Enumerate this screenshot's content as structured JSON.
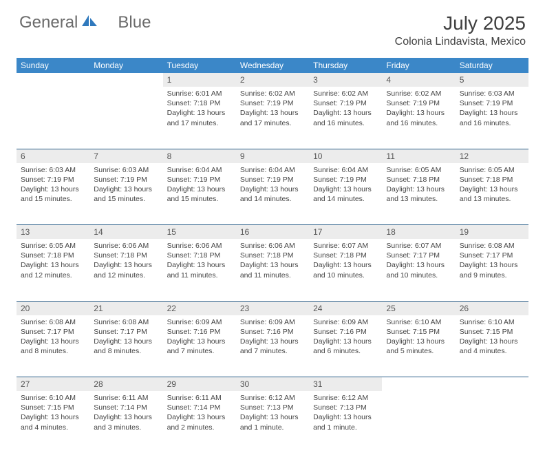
{
  "brand": {
    "name1": "General",
    "name2": "Blue"
  },
  "title": "July 2025",
  "location": "Colonia Lindavista, Mexico",
  "colors": {
    "header_bg": "#3b87c8",
    "header_text": "#ffffff",
    "daynum_bg": "#ececec",
    "daynum_text": "#555555",
    "cell_text": "#444444",
    "week_border": "#2b5f8a",
    "logo_text": "#6b6b6b",
    "logo_icon": "#2f79bd",
    "title_text": "#404040"
  },
  "day_headers": [
    "Sunday",
    "Monday",
    "Tuesday",
    "Wednesday",
    "Thursday",
    "Friday",
    "Saturday"
  ],
  "weeks": [
    [
      null,
      null,
      {
        "n": "1",
        "sunrise": "6:01 AM",
        "sunset": "7:18 PM",
        "daylight": "13 hours and 17 minutes."
      },
      {
        "n": "2",
        "sunrise": "6:02 AM",
        "sunset": "7:19 PM",
        "daylight": "13 hours and 17 minutes."
      },
      {
        "n": "3",
        "sunrise": "6:02 AM",
        "sunset": "7:19 PM",
        "daylight": "13 hours and 16 minutes."
      },
      {
        "n": "4",
        "sunrise": "6:02 AM",
        "sunset": "7:19 PM",
        "daylight": "13 hours and 16 minutes."
      },
      {
        "n": "5",
        "sunrise": "6:03 AM",
        "sunset": "7:19 PM",
        "daylight": "13 hours and 16 minutes."
      }
    ],
    [
      {
        "n": "6",
        "sunrise": "6:03 AM",
        "sunset": "7:19 PM",
        "daylight": "13 hours and 15 minutes."
      },
      {
        "n": "7",
        "sunrise": "6:03 AM",
        "sunset": "7:19 PM",
        "daylight": "13 hours and 15 minutes."
      },
      {
        "n": "8",
        "sunrise": "6:04 AM",
        "sunset": "7:19 PM",
        "daylight": "13 hours and 15 minutes."
      },
      {
        "n": "9",
        "sunrise": "6:04 AM",
        "sunset": "7:19 PM",
        "daylight": "13 hours and 14 minutes."
      },
      {
        "n": "10",
        "sunrise": "6:04 AM",
        "sunset": "7:19 PM",
        "daylight": "13 hours and 14 minutes."
      },
      {
        "n": "11",
        "sunrise": "6:05 AM",
        "sunset": "7:18 PM",
        "daylight": "13 hours and 13 minutes."
      },
      {
        "n": "12",
        "sunrise": "6:05 AM",
        "sunset": "7:18 PM",
        "daylight": "13 hours and 13 minutes."
      }
    ],
    [
      {
        "n": "13",
        "sunrise": "6:05 AM",
        "sunset": "7:18 PM",
        "daylight": "13 hours and 12 minutes."
      },
      {
        "n": "14",
        "sunrise": "6:06 AM",
        "sunset": "7:18 PM",
        "daylight": "13 hours and 12 minutes."
      },
      {
        "n": "15",
        "sunrise": "6:06 AM",
        "sunset": "7:18 PM",
        "daylight": "13 hours and 11 minutes."
      },
      {
        "n": "16",
        "sunrise": "6:06 AM",
        "sunset": "7:18 PM",
        "daylight": "13 hours and 11 minutes."
      },
      {
        "n": "17",
        "sunrise": "6:07 AM",
        "sunset": "7:18 PM",
        "daylight": "13 hours and 10 minutes."
      },
      {
        "n": "18",
        "sunrise": "6:07 AM",
        "sunset": "7:17 PM",
        "daylight": "13 hours and 10 minutes."
      },
      {
        "n": "19",
        "sunrise": "6:08 AM",
        "sunset": "7:17 PM",
        "daylight": "13 hours and 9 minutes."
      }
    ],
    [
      {
        "n": "20",
        "sunrise": "6:08 AM",
        "sunset": "7:17 PM",
        "daylight": "13 hours and 8 minutes."
      },
      {
        "n": "21",
        "sunrise": "6:08 AM",
        "sunset": "7:17 PM",
        "daylight": "13 hours and 8 minutes."
      },
      {
        "n": "22",
        "sunrise": "6:09 AM",
        "sunset": "7:16 PM",
        "daylight": "13 hours and 7 minutes."
      },
      {
        "n": "23",
        "sunrise": "6:09 AM",
        "sunset": "7:16 PM",
        "daylight": "13 hours and 7 minutes."
      },
      {
        "n": "24",
        "sunrise": "6:09 AM",
        "sunset": "7:16 PM",
        "daylight": "13 hours and 6 minutes."
      },
      {
        "n": "25",
        "sunrise": "6:10 AM",
        "sunset": "7:15 PM",
        "daylight": "13 hours and 5 minutes."
      },
      {
        "n": "26",
        "sunrise": "6:10 AM",
        "sunset": "7:15 PM",
        "daylight": "13 hours and 4 minutes."
      }
    ],
    [
      {
        "n": "27",
        "sunrise": "6:10 AM",
        "sunset": "7:15 PM",
        "daylight": "13 hours and 4 minutes."
      },
      {
        "n": "28",
        "sunrise": "6:11 AM",
        "sunset": "7:14 PM",
        "daylight": "13 hours and 3 minutes."
      },
      {
        "n": "29",
        "sunrise": "6:11 AM",
        "sunset": "7:14 PM",
        "daylight": "13 hours and 2 minutes."
      },
      {
        "n": "30",
        "sunrise": "6:12 AM",
        "sunset": "7:13 PM",
        "daylight": "13 hours and 1 minute."
      },
      {
        "n": "31",
        "sunrise": "6:12 AM",
        "sunset": "7:13 PM",
        "daylight": "13 hours and 1 minute."
      },
      null,
      null
    ]
  ],
  "labels": {
    "sunrise": "Sunrise:",
    "sunset": "Sunset:",
    "daylight": "Daylight:"
  }
}
